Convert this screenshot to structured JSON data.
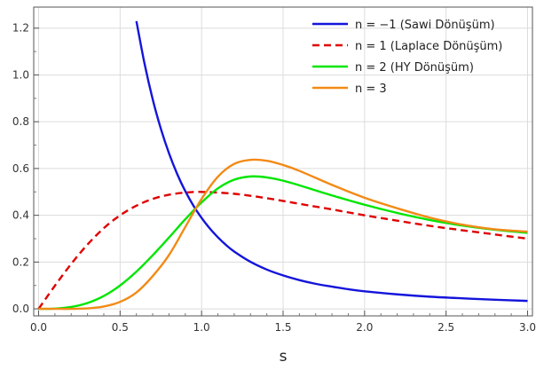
{
  "chart_data": {
    "type": "line",
    "title": "",
    "xlabel": "s",
    "ylabel": "",
    "xlim": [
      -0.03,
      3.03
    ],
    "ylim": [
      -0.03,
      1.29
    ],
    "xticks": [
      0.0,
      0.5,
      1.0,
      1.5,
      2.0,
      2.5,
      3.0
    ],
    "xtick_labels": [
      "0.0",
      "0.5",
      "1.0",
      "1.5",
      "2.0",
      "2.5",
      "3.0"
    ],
    "yticks": [
      0.0,
      0.2,
      0.4,
      0.6,
      0.8,
      1.0,
      1.2
    ],
    "ytick_labels": [
      "0.0",
      "0.2",
      "0.4",
      "0.6",
      "0.8",
      "1.0",
      "1.2"
    ],
    "grid": true,
    "legend_position": "top-right",
    "series": [
      {
        "name": "n = −1 (Sawi Dönüşüm)",
        "color": "#1414dc",
        "dash": "solid",
        "x": [
          0.6,
          0.65,
          0.7,
          0.75,
          0.8,
          0.85,
          0.9,
          0.95,
          1.0,
          1.05,
          1.1,
          1.15,
          1.2,
          1.3,
          1.4,
          1.5,
          1.6,
          1.7,
          1.8,
          1.9,
          2.0,
          2.2,
          2.4,
          2.6,
          2.8,
          3.0
        ],
        "y": [
          1.23,
          1.048,
          0.896,
          0.77,
          0.665,
          0.577,
          0.503,
          0.441,
          0.389,
          0.344,
          0.306,
          0.273,
          0.245,
          0.201,
          0.168,
          0.143,
          0.123,
          0.107,
          0.095,
          0.084,
          0.075,
          0.062,
          0.052,
          0.045,
          0.039,
          0.034
        ]
      },
      {
        "name": "n = 1 (Laplace Dönüşüm)",
        "color": "#e00000",
        "dash": "dashed",
        "x": [
          0.0,
          0.1,
          0.2,
          0.3,
          0.4,
          0.5,
          0.6,
          0.7,
          0.8,
          0.9,
          1.0,
          1.2,
          1.4,
          1.6,
          1.8,
          2.0,
          2.2,
          2.4,
          2.6,
          2.8,
          3.0
        ],
        "y": [
          0.0,
          0.099,
          0.192,
          0.275,
          0.345,
          0.4,
          0.441,
          0.47,
          0.488,
          0.497,
          0.5,
          0.492,
          0.473,
          0.449,
          0.425,
          0.4,
          0.377,
          0.355,
          0.336,
          0.318,
          0.3
        ]
      },
      {
        "name": "n = 2 (HY Dönüşüm)",
        "color": "#00e600",
        "dash": "solid",
        "x": [
          0.0,
          0.1,
          0.2,
          0.3,
          0.4,
          0.5,
          0.6,
          0.7,
          0.8,
          0.9,
          1.0,
          1.1,
          1.2,
          1.3,
          1.4,
          1.5,
          1.6,
          1.8,
          2.0,
          2.2,
          2.4,
          2.6,
          2.8,
          3.0
        ],
        "y": [
          0.0,
          0.001,
          0.008,
          0.025,
          0.055,
          0.1,
          0.159,
          0.229,
          0.305,
          0.383,
          0.455,
          0.515,
          0.552,
          0.566,
          0.562,
          0.548,
          0.528,
          0.485,
          0.445,
          0.41,
          0.38,
          0.356,
          0.338,
          0.325
        ]
      },
      {
        "name": "n = 3",
        "color": "#f28a16",
        "dash": "solid",
        "x": [
          0.0,
          0.1,
          0.2,
          0.3,
          0.4,
          0.5,
          0.6,
          0.7,
          0.8,
          0.9,
          1.0,
          1.1,
          1.2,
          1.3,
          1.4,
          1.5,
          1.6,
          1.8,
          2.0,
          2.2,
          2.4,
          2.6,
          2.8,
          3.0
        ],
        "y": [
          0.0,
          0.0,
          0.0,
          0.002,
          0.01,
          0.03,
          0.07,
          0.14,
          0.23,
          0.35,
          0.47,
          0.565,
          0.62,
          0.637,
          0.633,
          0.615,
          0.59,
          0.53,
          0.475,
          0.43,
          0.39,
          0.36,
          0.34,
          0.33
        ]
      }
    ]
  }
}
